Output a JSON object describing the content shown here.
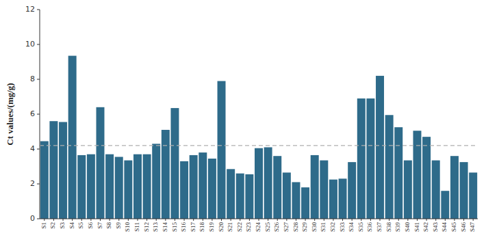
{
  "chart_data": {
    "type": "bar",
    "categories": [
      "S1",
      "S2",
      "S3",
      "S4",
      "S5",
      "S6",
      "S7",
      "S8",
      "S9",
      "S10",
      "S11",
      "S12",
      "S13",
      "S14",
      "S15",
      "S16",
      "S17",
      "S18",
      "S19",
      "S20",
      "S21",
      "S22",
      "S23",
      "S24",
      "S25",
      "S26",
      "S27",
      "S28",
      "S29",
      "S30",
      "S31",
      "S32",
      "S33",
      "S34",
      "S35",
      "S36",
      "S37",
      "S38",
      "S39",
      "S40",
      "S41",
      "S42",
      "S43",
      "S44",
      "S45",
      "S46",
      "S47"
    ],
    "values": [
      4.45,
      5.6,
      5.55,
      9.35,
      3.65,
      3.7,
      6.4,
      3.7,
      3.55,
      3.35,
      3.7,
      3.7,
      4.3,
      5.1,
      6.35,
      3.3,
      3.65,
      3.8,
      3.45,
      7.9,
      2.85,
      2.6,
      2.55,
      4.05,
      4.1,
      3.6,
      2.65,
      2.1,
      1.8,
      3.65,
      3.35,
      2.25,
      2.3,
      3.25,
      6.9,
      6.9,
      8.2,
      5.95,
      5.25,
      3.35,
      5.05,
      4.7,
      3.35,
      1.6,
      3.6,
      3.25,
      2.65
    ],
    "color": "#2e6b8a",
    "ylabel": "Ct values/(mg/g)",
    "ylim": [
      0,
      12
    ],
    "yticks": [
      0,
      2,
      4,
      6,
      8,
      10,
      12
    ],
    "reference_line": {
      "y": 4.2,
      "color": "#b0b0b0",
      "line_style": "dashed"
    },
    "grid": false
  }
}
